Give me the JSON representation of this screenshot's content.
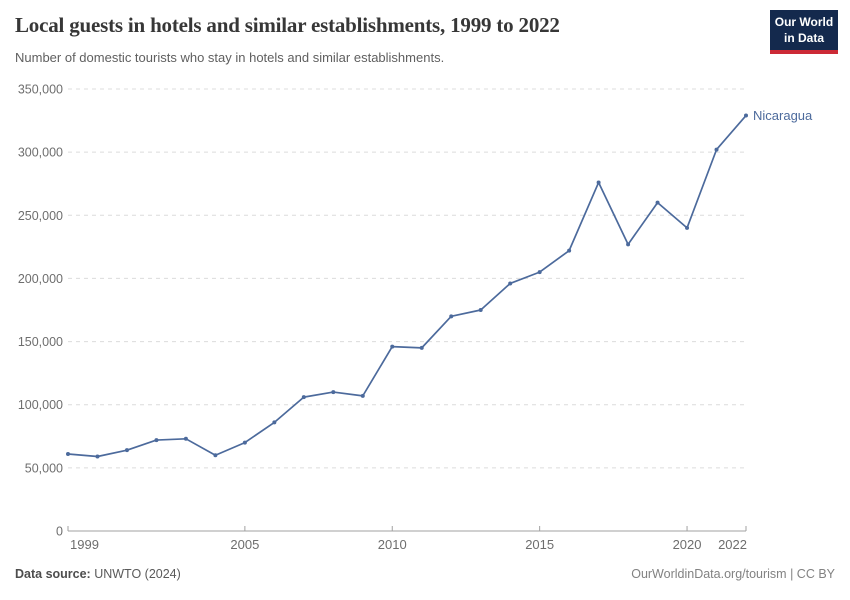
{
  "header": {
    "logo_line1": "Our World",
    "logo_line2": "in Data"
  },
  "chart_data": {
    "type": "line",
    "title": "Local guests in hotels and similar establishments, 1999 to 2022",
    "subtitle": "Number of domestic tourists who stay in hotels and similar establishments.",
    "xlabel": "",
    "ylabel": "",
    "xlim": [
      1999,
      2022
    ],
    "ylim": [
      0,
      350000
    ],
    "grid": "horizontal-dashed",
    "legend_position": "end-of-line-label",
    "xticks": [
      1999,
      2005,
      2010,
      2015,
      2020,
      2022
    ],
    "yticks": [
      0,
      50000,
      100000,
      150000,
      200000,
      250000,
      300000,
      350000
    ],
    "ytick_labels": [
      "0",
      "50,000",
      "100,000",
      "150,000",
      "200,000",
      "250,000",
      "300,000",
      "350,000"
    ],
    "series": [
      {
        "name": "Nicaragua",
        "color": "#4C6A9C",
        "x": [
          1999,
          2000,
          2001,
          2002,
          2003,
          2004,
          2005,
          2006,
          2007,
          2008,
          2009,
          2010,
          2011,
          2012,
          2013,
          2014,
          2015,
          2016,
          2017,
          2018,
          2019,
          2020,
          2021,
          2022
        ],
        "values": [
          61000,
          59000,
          64000,
          72000,
          73000,
          60000,
          70000,
          86000,
          106000,
          110000,
          107000,
          146000,
          145000,
          170000,
          175000,
          196000,
          205000,
          222000,
          276000,
          227000,
          260000,
          240000,
          302000,
          329000
        ]
      }
    ]
  },
  "footer": {
    "datasource_label": "Data source:",
    "datasource_value": " UNWTO (2024)",
    "credit": "OurWorldinData.org/tourism | CC BY"
  },
  "colors": {
    "line": "#4C6A9C",
    "grid": "#dcdcdc",
    "axis": "#a1a1a1",
    "tick_text": "#6e6e6e",
    "logo_navy": "#14294d",
    "logo_red": "#cc2a36"
  }
}
